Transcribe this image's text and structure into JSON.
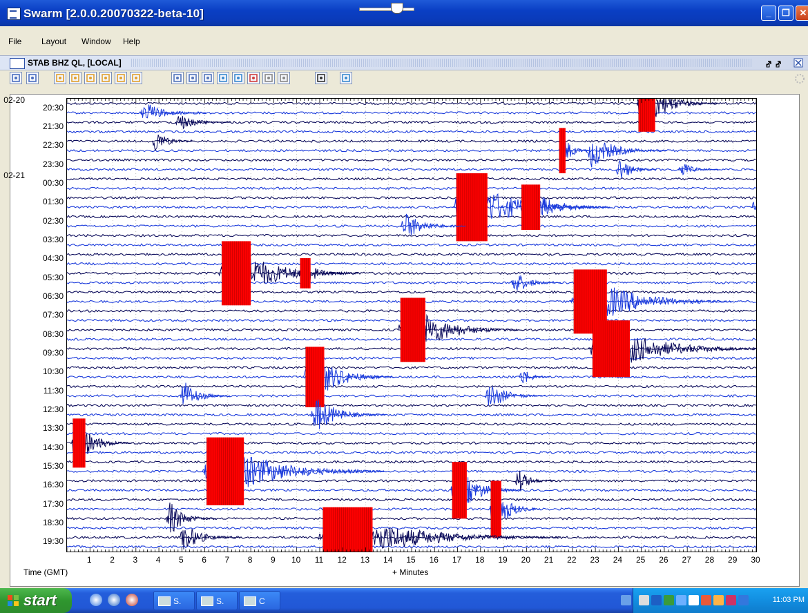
{
  "window": {
    "title": "Swarm [2.0.0.20070322-beta-10]",
    "minimize_icon": "minimize-icon",
    "maximize_icon": "maximize-icon",
    "close_icon": "close-icon"
  },
  "menu": {
    "items": [
      {
        "label": "File"
      },
      {
        "label": "Layout"
      },
      {
        "label": "Window"
      },
      {
        "label": "Help"
      }
    ]
  },
  "frame": {
    "title": "STAB BHZ QL, [LOCAL]"
  },
  "toolbar": {
    "zoom_slider_value": 0.6
  },
  "chart_data": {
    "type": "helicorder",
    "date_labels": [
      {
        "label": "02-20",
        "row": 0
      },
      {
        "label": "02-21",
        "row": 4
      }
    ],
    "row_labels": [
      "20:30",
      "21:30",
      "22:30",
      "23:30",
      "00:30",
      "01:30",
      "02:30",
      "03:30",
      "04:30",
      "05:30",
      "06:30",
      "07:30",
      "08:30",
      "09:30",
      "10:30",
      "11:30",
      "12:30",
      "13:30",
      "14:30",
      "15:30",
      "16:30",
      "17:30",
      "18:30",
      "19:30"
    ],
    "xticks": [
      "1",
      "2",
      "3",
      "4",
      "5",
      "6",
      "7",
      "8",
      "9",
      "10",
      "11",
      "12",
      "13",
      "14",
      "15",
      "16",
      "17",
      "18",
      "19",
      "20",
      "21",
      "22",
      "23",
      "24",
      "25",
      "26",
      "27",
      "28",
      "29",
      "30"
    ],
    "xlabel": "+ Minutes",
    "ylabel": "Time (GMT)",
    "xlim": [
      0,
      30
    ],
    "colors": {
      "trace_a": "#0a0a5a",
      "trace_b": "#1a3adb",
      "clip": "#ff0000"
    },
    "events": [
      {
        "minute": 24.8,
        "row": 0.0,
        "span": 1.6,
        "amp": 3.0,
        "clip": true
      },
      {
        "minute": 3.2,
        "row": 0.3,
        "span": 1.3,
        "amp": 1.2,
        "clip": false
      },
      {
        "minute": 4.7,
        "row": 1.2,
        "span": 1.1,
        "amp": 1.0,
        "clip": false
      },
      {
        "minute": 3.7,
        "row": 2.0,
        "span": 0.8,
        "amp": 1.4,
        "clip": false
      },
      {
        "minute": 21.4,
        "row": 2.4,
        "span": 0.6,
        "amp": 2.4,
        "clip": true
      },
      {
        "minute": 22.6,
        "row": 2.6,
        "span": 1.6,
        "amp": 1.8,
        "clip": false
      },
      {
        "minute": 23.9,
        "row": 3.3,
        "span": 0.8,
        "amp": 1.6,
        "clip": false
      },
      {
        "minute": 26.6,
        "row": 3.3,
        "span": 0.8,
        "amp": 0.9,
        "clip": false
      },
      {
        "minute": 16.8,
        "row": 5.6,
        "span": 3.0,
        "amp": 3.6,
        "clip": true
      },
      {
        "minute": 19.7,
        "row": 5.7,
        "span": 1.8,
        "amp": 2.4,
        "clip": true
      },
      {
        "minute": 14.5,
        "row": 6.3,
        "span": 1.3,
        "amp": 1.6,
        "clip": false
      },
      {
        "minute": 29.8,
        "row": 5.6,
        "span": 0.3,
        "amp": 1.2,
        "clip": false
      },
      {
        "minute": 6.6,
        "row": 9.1,
        "span": 2.8,
        "amp": 3.4,
        "clip": true
      },
      {
        "minute": 10.1,
        "row": 9.0,
        "span": 1.0,
        "amp": 1.6,
        "clip": true
      },
      {
        "minute": 19.3,
        "row": 9.6,
        "span": 1.0,
        "amp": 1.4,
        "clip": false
      },
      {
        "minute": 21.9,
        "row": 10.5,
        "span": 3.2,
        "amp": 3.4,
        "clip": true
      },
      {
        "minute": 14.4,
        "row": 12.2,
        "span": 2.4,
        "amp": 3.4,
        "clip": true
      },
      {
        "minute": 22.7,
        "row": 13.1,
        "span": 3.6,
        "amp": 3.0,
        "clip": true
      },
      {
        "minute": 10.3,
        "row": 14.4,
        "span": 1.8,
        "amp": 3.2,
        "clip": true
      },
      {
        "minute": 19.7,
        "row": 14.3,
        "span": 0.6,
        "amp": 1.2,
        "clip": false
      },
      {
        "minute": 4.9,
        "row": 15.6,
        "span": 1.0,
        "amp": 1.8,
        "clip": false
      },
      {
        "minute": 10.6,
        "row": 16.6,
        "span": 1.5,
        "amp": 2.0,
        "clip": false
      },
      {
        "minute": 18.2,
        "row": 15.7,
        "span": 1.2,
        "amp": 1.6,
        "clip": false
      },
      {
        "minute": 0.2,
        "row": 17.8,
        "span": 1.2,
        "amp": 2.6,
        "clip": true
      },
      {
        "minute": 5.9,
        "row": 19.6,
        "span": 3.6,
        "amp": 3.6,
        "clip": true
      },
      {
        "minute": 16.7,
        "row": 20.4,
        "span": 1.4,
        "amp": 3.0,
        "clip": true
      },
      {
        "minute": 18.4,
        "row": 21.4,
        "span": 1.0,
        "amp": 3.0,
        "clip": true
      },
      {
        "minute": 19.5,
        "row": 20.0,
        "span": 0.8,
        "amp": 1.4,
        "clip": false
      },
      {
        "minute": 4.3,
        "row": 21.9,
        "span": 1.0,
        "amp": 2.0,
        "clip": false
      },
      {
        "minute": 10.9,
        "row": 23.1,
        "span": 4.8,
        "amp": 3.2,
        "clip": true
      },
      {
        "minute": 4.9,
        "row": 23.2,
        "span": 1.2,
        "amp": 1.6,
        "clip": false
      }
    ]
  },
  "taskbar": {
    "start_label": "start",
    "tasks": [
      {
        "label": "S."
      },
      {
        "label": "S."
      },
      {
        "label": "C"
      }
    ],
    "clock": "11:03 PM"
  }
}
